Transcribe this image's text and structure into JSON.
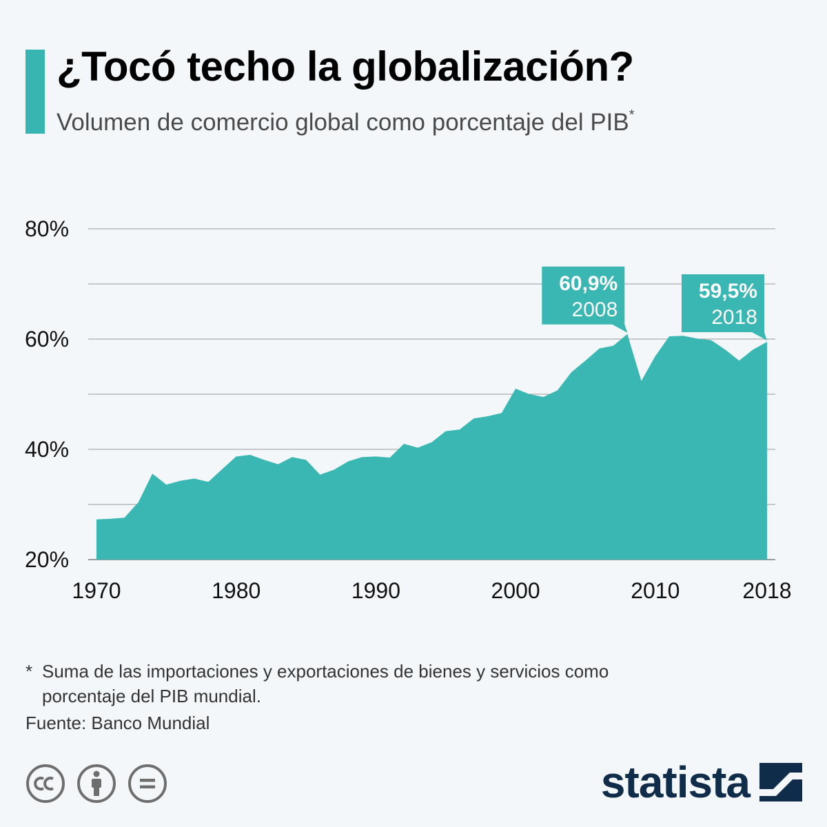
{
  "header": {
    "title": "¿Tocó techo la globalización?",
    "subtitle": "Volumen de comercio global como porcentaje del PIB",
    "subtitle_mark": "*"
  },
  "colors": {
    "accent": "#39b5b1",
    "area": "#3ab7b3",
    "grid": "#9a9a9a",
    "brand": "#0f2c4a"
  },
  "chart_data": {
    "type": "area",
    "title": "¿Tocó techo la globalización?",
    "ylabel": "",
    "xlabel": "",
    "ylim": [
      20,
      80
    ],
    "y_ticks": [
      20,
      40,
      60,
      80
    ],
    "y_tick_labels": [
      "20%",
      "40%",
      "60%",
      "80%"
    ],
    "x_ticks": [
      1970,
      1980,
      1990,
      2000,
      2010,
      2018
    ],
    "x_tick_labels": [
      "1970",
      "1980",
      "1990",
      "2000",
      "2010",
      "2018"
    ],
    "grid": true,
    "x": [
      1970,
      1971,
      1972,
      1973,
      1974,
      1975,
      1976,
      1977,
      1978,
      1979,
      1980,
      1981,
      1982,
      1983,
      1984,
      1985,
      1986,
      1987,
      1988,
      1989,
      1990,
      1991,
      1992,
      1993,
      1994,
      1995,
      1996,
      1997,
      1998,
      1999,
      2000,
      2001,
      2002,
      2003,
      2004,
      2005,
      2006,
      2007,
      2008,
      2009,
      2010,
      2011,
      2012,
      2013,
      2014,
      2015,
      2016,
      2017,
      2018
    ],
    "values": [
      27.3,
      27.4,
      27.6,
      30.4,
      35.6,
      33.6,
      34.3,
      34.7,
      34.1,
      36.4,
      38.7,
      39.0,
      38.1,
      37.3,
      38.6,
      38.1,
      35.4,
      36.3,
      37.8,
      38.6,
      38.7,
      38.5,
      41.0,
      40.3,
      41.3,
      43.3,
      43.6,
      45.6,
      46.0,
      46.6,
      51.0,
      50.0,
      49.5,
      50.7,
      54.0,
      56.1,
      58.3,
      58.8,
      60.9,
      52.4,
      56.9,
      60.5,
      60.6,
      60.1,
      59.8,
      58.1,
      56.1,
      58.1,
      59.5
    ],
    "annotations": [
      {
        "value_label": "60,9%",
        "year_label": "2008",
        "x": 2008,
        "y": 60.9
      },
      {
        "value_label": "59,5%",
        "year_label": "2018",
        "x": 2018,
        "y": 59.5
      }
    ]
  },
  "footer": {
    "footnote_star": "*",
    "footnote_line1": "Suma de las importaciones y exportaciones de bienes y servicios como",
    "footnote_line2": "porcentaje del PIB mundial.",
    "source": "Fuente: Banco Mundial",
    "brand": "statista",
    "license_icons": [
      "cc-icon",
      "attribution-icon",
      "no-derivatives-icon"
    ]
  }
}
